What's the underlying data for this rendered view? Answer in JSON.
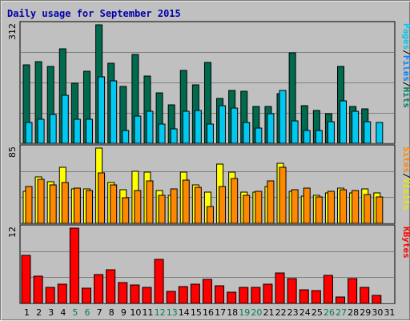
{
  "chart_data": {
    "type": "bar",
    "title": "Daily usage for September 2015",
    "x": [
      "1",
      "2",
      "3",
      "4",
      "5",
      "6",
      "7",
      "8",
      "9",
      "10",
      "11",
      "12",
      "13",
      "14",
      "15",
      "16",
      "17",
      "18",
      "19",
      "20",
      "21",
      "22",
      "23",
      "24",
      "25",
      "26",
      "27",
      "28",
      "29",
      "30",
      "31"
    ],
    "weekend_days": [
      "5",
      "6",
      "12",
      "13",
      "19",
      "20",
      "26",
      "27"
    ],
    "colors": {
      "title": "#0000aa",
      "weekday_label": "#000000",
      "weekend_label": "#00805a",
      "background": "#c0c0c0",
      "plot_bg": "#c0c0c0",
      "grid": "#7f7f7f",
      "hits": "#006a4f",
      "files": "#00c8f0",
      "visits": "#ffff00",
      "sites": "#ff8800",
      "kbytes": "#ff0000"
    },
    "panels": [
      {
        "name": "hits_files",
        "ymax_label": "312",
        "ymax": 312,
        "legend": [
          "Pages",
          "/",
          "Files",
          "/",
          "Hits"
        ],
        "legend_colors": [
          "#00c8f0",
          "#000000",
          "#0080ff",
          "#000000",
          "#008060"
        ],
        "series": [
          {
            "name": "Hits",
            "values": [
              207,
              216,
              202,
              249,
              158,
              190,
              312,
              210,
              150,
              234,
              178,
              133,
              102,
              191,
              153,
              213,
              119,
              139,
              136,
              96,
              96,
              131,
              239,
              100,
              86,
              77,
              203,
              98,
              90,
              0,
              null
            ]
          },
          {
            "name": "Files",
            "values": [
              55,
              64,
              76,
              126,
              64,
              64,
              174,
              164,
              34,
              71,
              84,
              51,
              37,
              84,
              86,
              51,
              99,
              92,
              54,
              40,
              79,
              140,
              58,
              34,
              34,
              56,
              112,
              84,
              57,
              55,
              null
            ]
          }
        ]
      },
      {
        "name": "visits_sites",
        "ymax_label": "85",
        "ymax": 85,
        "legend": [
          "Sites",
          "/",
          "Visits"
        ],
        "legend_colors": [
          "#ff8800",
          "#000000",
          "#e8e800"
        ],
        "series": [
          {
            "name": "Visits",
            "values": [
              36,
              52,
              47,
              63,
              39,
              39,
              85,
              46,
              38,
              59,
              58,
              37,
              32,
              58,
              43,
              35,
              67,
              58,
              35,
              35,
              42,
              68,
              36,
              31,
              32,
              34,
              40,
              34,
              39,
              34,
              null
            ]
          },
          {
            "name": "Sites",
            "values": [
              42,
              50,
              43,
              46,
              40,
              37,
              57,
              43,
              29,
              37,
              48,
              32,
              39,
              49,
              41,
              19,
              42,
              51,
              32,
              36,
              48,
              63,
              38,
              40,
              30,
              36,
              38,
              37,
              33,
              30,
              null
            ]
          }
        ]
      },
      {
        "name": "kbytes",
        "ymax_label": "12",
        "ymax": 12,
        "legend": [
          "KBytes"
        ],
        "legend_colors": [
          "#ff0000"
        ],
        "series": [
          {
            "name": "KBytes",
            "values": [
              7.6,
              4.3,
              2.6,
              3.1,
              12.0,
              2.4,
              4.6,
              5.4,
              3.3,
              2.9,
              2.5,
              7.0,
              1.9,
              2.7,
              3.1,
              3.8,
              2.8,
              1.8,
              2.5,
              2.5,
              3.1,
              4.8,
              3.9,
              2.2,
              2.1,
              4.5,
              1.0,
              3.9,
              2.5,
              1.3,
              null
            ]
          }
        ]
      }
    ]
  }
}
